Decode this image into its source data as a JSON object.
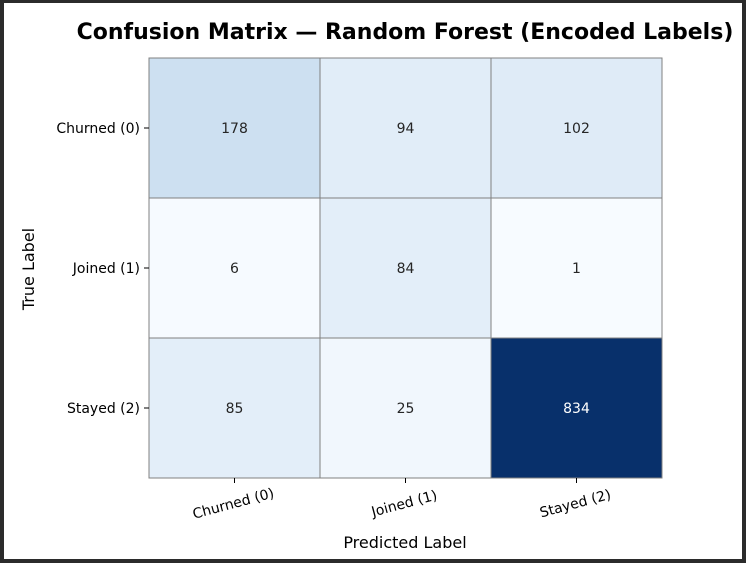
{
  "chart_data": {
    "type": "heatmap",
    "title": "Confusion Matrix — Random Forest (Encoded Labels)",
    "xlabel": "Predicted Label",
    "ylabel": "True Label",
    "x_categories": [
      "Churned (0)",
      "Joined (1)",
      "Stayed (2)"
    ],
    "y_categories": [
      "Churned (0)",
      "Joined (1)",
      "Stayed (2)"
    ],
    "values": [
      [
        178,
        94,
        102
      ],
      [
        6,
        84,
        1
      ],
      [
        85,
        25,
        834
      ]
    ],
    "colormap": "Blues",
    "color_low": "#f7fbff",
    "color_high": "#08306b",
    "grid": true,
    "colorbar": false
  }
}
